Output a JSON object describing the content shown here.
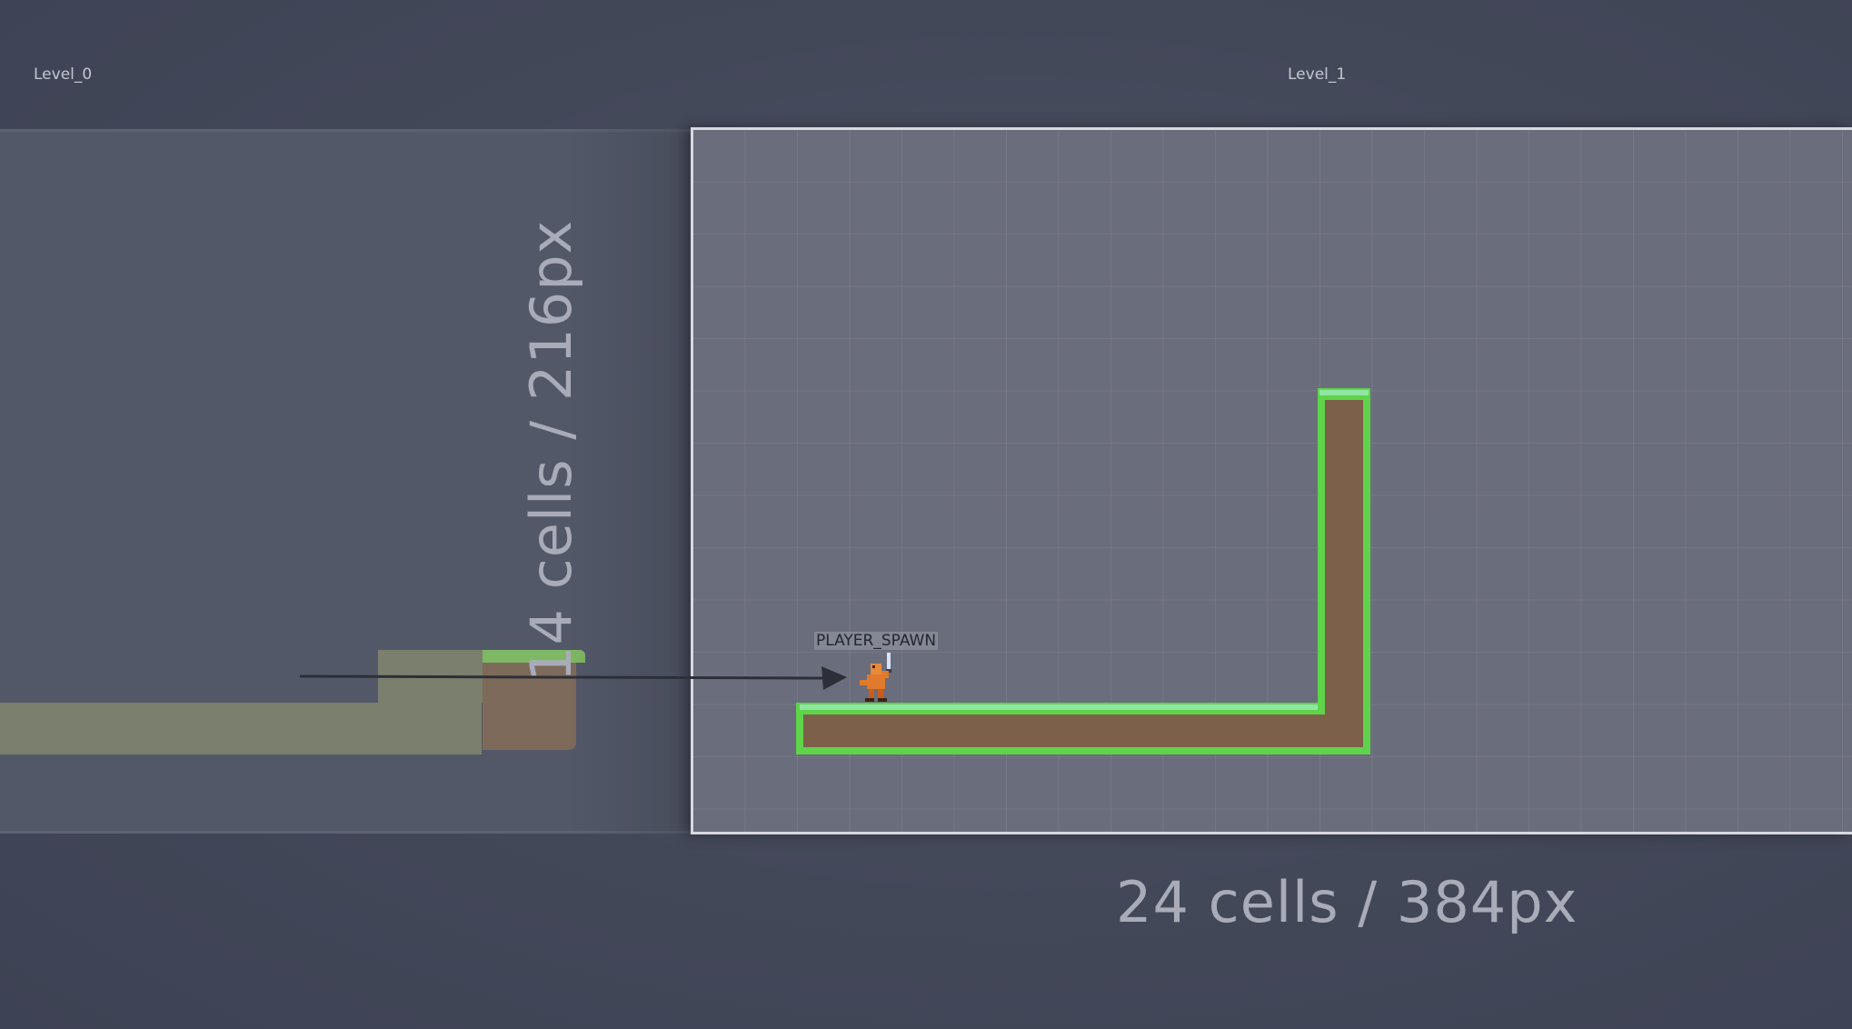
{
  "levels": [
    {
      "name": "Level_0"
    },
    {
      "name": "Level_1"
    }
  ],
  "dimensions": {
    "height_label": "14 cells / 216px",
    "width_label": "24 cells / 384px"
  },
  "entities": {
    "player_spawn": "PLAYER_SPAWN"
  },
  "colors": {
    "background": "#434859",
    "level_bg": "#6a6d7b",
    "grass": "#5fd34a",
    "dirt": "#7d6049",
    "selection_border": "#d7d9df"
  }
}
